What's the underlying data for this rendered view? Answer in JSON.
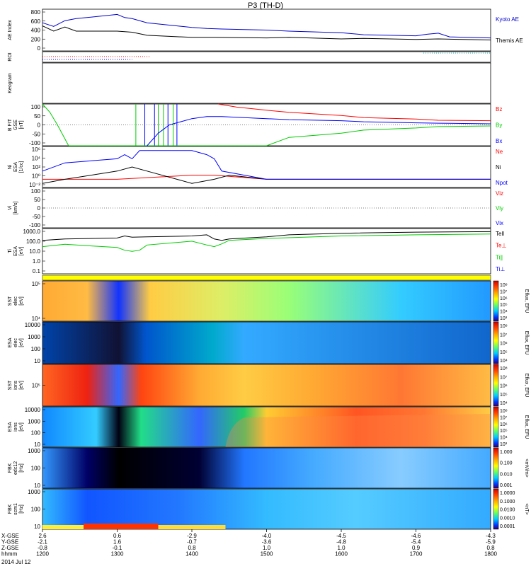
{
  "title": "P3 (TH-D)",
  "date": "2014 Jul 12",
  "colors": {
    "kyoto": "#0000cc",
    "themis": "#000000",
    "red": "#ff0000",
    "green": "#00cc00",
    "blue": "#0000ff"
  },
  "time_axis": {
    "start": 1200,
    "end": 1800,
    "ticks": [
      {
        "hhmm": "1200",
        "x_gse": "2.6",
        "y_gse": "-2.1",
        "z_gse": "-0.8"
      },
      {
        "hhmm": "1300",
        "x_gse": "0.6",
        "y_gse": "1.6",
        "z_gse": "-0.1"
      },
      {
        "hhmm": "1400",
        "x_gse": "-2.9",
        "y_gse": "-0.7",
        "z_gse": "0.8"
      },
      {
        "hhmm": "1500",
        "x_gse": "-4.0",
        "y_gse": "-3.6",
        "z_gse": "1.0"
      },
      {
        "hhmm": "1600",
        "x_gse": "-4.5",
        "y_gse": "-4.8",
        "z_gse": "1.0"
      },
      {
        "hhmm": "1700",
        "x_gse": "-4.6",
        "y_gse": "-5.4",
        "z_gse": "0.9"
      },
      {
        "hhmm": "1800",
        "x_gse": "-4.3",
        "y_gse": "-5.9",
        "z_gse": "0.8"
      }
    ],
    "row_labels": [
      "X-GSE",
      "Y-GSE",
      "Z-GSE",
      "hhmm"
    ]
  },
  "chart_data": [
    {
      "type": "line",
      "panel": "ae",
      "ylabel": "AE Index",
      "ylim": [
        0,
        800
      ],
      "yticks": [
        "800",
        "600",
        "400",
        "200",
        "0"
      ],
      "series": [
        {
          "name": "Kyoto AE",
          "t": [
            1200,
            1215,
            1230,
            1245,
            1300,
            1310,
            1320,
            1340,
            1400,
            1420,
            1440,
            1500,
            1530,
            1600,
            1630,
            1700,
            1715,
            1730,
            1745,
            1800
          ],
          "y": [
            540,
            470,
            580,
            620,
            700,
            640,
            620,
            540,
            450,
            430,
            420,
            400,
            380,
            350,
            310,
            290,
            320,
            340,
            270,
            250
          ]
        },
        {
          "name": "Themis AE",
          "t": [
            1200,
            1215,
            1230,
            1245,
            1300,
            1320,
            1340,
            1400,
            1430,
            1500,
            1530,
            1600,
            1630,
            1700,
            1730,
            1800
          ],
          "y": [
            480,
            380,
            460,
            380,
            380,
            360,
            300,
            260,
            260,
            250,
            260,
            230,
            240,
            220,
            230,
            210
          ]
        }
      ]
    },
    {
      "type": "line",
      "panel": "roi",
      "ylabel": "ROI"
    },
    {
      "type": "line",
      "panel": "keogram",
      "ylabel": "Keogram"
    },
    {
      "type": "line",
      "panel": "bfit",
      "ylabel": "B FIT\nGSE\n[nT]",
      "ylim": [
        -100,
        100
      ],
      "yticks": [
        "100",
        "50",
        "0",
        "-50",
        "-100"
      ],
      "series": [
        {
          "name": "Bz",
          "t": [
            1435,
            1460,
            1500,
            1530,
            1600,
            1630,
            1700,
            1730,
            1800
          ],
          "y": [
            100,
            85,
            70,
            60,
            45,
            35,
            28,
            22,
            20
          ]
        },
        {
          "name": "By",
          "t": [
            1200,
            1210,
            1220,
            1235,
            1500,
            1530,
            1600,
            1630,
            1700,
            1730,
            1800
          ],
          "y": [
            100,
            60,
            0,
            -100,
            -100,
            -60,
            -40,
            -25,
            -15,
            -8,
            -5
          ]
        },
        {
          "name": "Bx",
          "t": [
            1340,
            1355,
            1370,
            1400,
            1420,
            1440,
            1500,
            1530,
            1600,
            1630,
            1700,
            1730,
            1800
          ],
          "y": [
            -100,
            -40,
            0,
            30,
            40,
            40,
            30,
            25,
            20,
            15,
            10,
            8,
            5
          ]
        }
      ]
    },
    {
      "type": "line",
      "panel": "ni",
      "ylabel": "Ni\nESA\n[1/cc]",
      "ylim": [
        -3,
        7
      ],
      "yticks": [
        "10⁶",
        "10⁴",
        "10²",
        "10⁰",
        "10⁻²"
      ],
      "series": [
        {
          "name": "Ne",
          "t": [
            1200,
            1300,
            1400,
            1430,
            1500,
            1600,
            1700,
            1800
          ],
          "y": [
            -1,
            -1,
            0,
            0,
            -1,
            -1,
            -1,
            -1
          ]
        },
        {
          "name": "Ni",
          "t": [
            1200,
            1230,
            1300,
            1320,
            1340,
            1400,
            1430,
            1450,
            1500,
            1600,
            1700,
            1800
          ],
          "y": [
            -2,
            -1,
            1,
            2,
            1,
            -2,
            -1,
            0,
            -1,
            -1,
            -1,
            -1
          ]
        },
        {
          "name": "Npot",
          "t": [
            1200,
            1230,
            1300,
            1310,
            1320,
            1330,
            1400,
            1420,
            1430,
            1440,
            1500,
            1600,
            1700,
            1800
          ],
          "y": [
            1,
            3,
            4,
            5,
            4,
            6,
            6,
            5,
            4,
            1,
            -1,
            -1,
            -1,
            -1
          ]
        }
      ]
    },
    {
      "type": "line",
      "panel": "vi",
      "ylabel": "Vi\n[km/s]",
      "ylim": [
        -150,
        150
      ],
      "yticks": [
        "100",
        "50",
        "0",
        "-50",
        "-100"
      ],
      "series": [
        {
          "name": "Viz",
          "values": []
        },
        {
          "name": "Viy",
          "values": []
        },
        {
          "name": "Vix",
          "values": []
        }
      ]
    },
    {
      "type": "line",
      "panel": "ti",
      "ylabel": "Ti\nESA\n[eV]",
      "ylim": [
        0.1,
        10000
      ],
      "yticks": [
        "1000.0",
        "100.0",
        "10.0",
        "1.0",
        "0.1"
      ],
      "series": [
        {
          "name": "Tell",
          "t": [
            1200,
            1230,
            1300,
            1310,
            1320,
            1340,
            1400,
            1420,
            1430,
            1440,
            1450,
            1500,
            1530,
            1600,
            1700,
            1800
          ],
          "y": [
            500,
            700,
            900,
            1500,
            1100,
            1200,
            1500,
            2000,
            700,
            500,
            700,
            1200,
            2000,
            3000,
            4000,
            4500
          ]
        },
        {
          "name": "Te⊥",
          "values": []
        },
        {
          "name": "Ti∥",
          "t": [
            1200,
            1230,
            1300,
            1310,
            1320,
            1330,
            1340,
            1400,
            1420,
            1430,
            1440,
            1450,
            1500,
            1600,
            1700,
            1800
          ],
          "y": [
            100,
            180,
            80,
            40,
            30,
            40,
            150,
            400,
            150,
            100,
            200,
            500,
            800,
            1500,
            2000,
            2500
          ]
        },
        {
          "name": "Ti⊥",
          "values": []
        }
      ]
    },
    {
      "type": "heatmap",
      "panel": "sst1",
      "ylabel": "SST\nelec\n[eV]",
      "yticks": [
        "10⁵",
        "10⁴"
      ],
      "colorbar_label": "Eflux, EFU",
      "cticks": [
        "10⁸",
        "10⁷",
        "10⁶",
        "10⁵",
        "10⁴",
        "10³"
      ]
    },
    {
      "type": "heatmap",
      "panel": "esa1",
      "ylabel": "ESA\nelec\n[eV]",
      "yticks": [
        "10000",
        "1000",
        "100",
        "10"
      ],
      "colorbar_label": "Eflux, EFU",
      "cticks": [
        "10⁸",
        "10⁷",
        "10⁶",
        "10⁵",
        "10⁴"
      ]
    },
    {
      "type": "heatmap",
      "panel": "sst2",
      "ylabel": "SST\nions\n[eV]",
      "yticks": [
        "10⁵"
      ],
      "colorbar_label": "Eflux, EFU",
      "cticks": [
        "10⁸",
        "10⁷",
        "10⁶",
        "10⁵",
        "10⁴"
      ]
    },
    {
      "type": "heatmap",
      "panel": "esa2",
      "ylabel": "ESA\nions\n[eV]",
      "yticks": [
        "10000",
        "1000",
        "100",
        "10"
      ],
      "colorbar_label": "Eflux, EFU",
      "cticks": [
        "10⁸",
        "10⁷",
        "10⁶",
        "10⁵",
        "10⁴",
        "10³"
      ]
    },
    {
      "type": "heatmap",
      "panel": "fbk1",
      "ylabel": "FBK\nedc12\n[Hz]",
      "yticks": [
        "1000",
        "100",
        "10"
      ],
      "colorbar_label": "<mV/m>",
      "cticks": [
        "1.000",
        "0.100",
        "0.010",
        "0.001"
      ]
    },
    {
      "type": "heatmap",
      "panel": "fbk2",
      "ylabel": "FBK\nscm1\n[Hz]",
      "yticks": [
        "1000",
        "100",
        "10"
      ],
      "colorbar_label": "<nT>",
      "cticks": [
        "1.0000",
        "0.1000",
        "0.0100",
        "0.0010",
        "0.0001"
      ]
    }
  ]
}
